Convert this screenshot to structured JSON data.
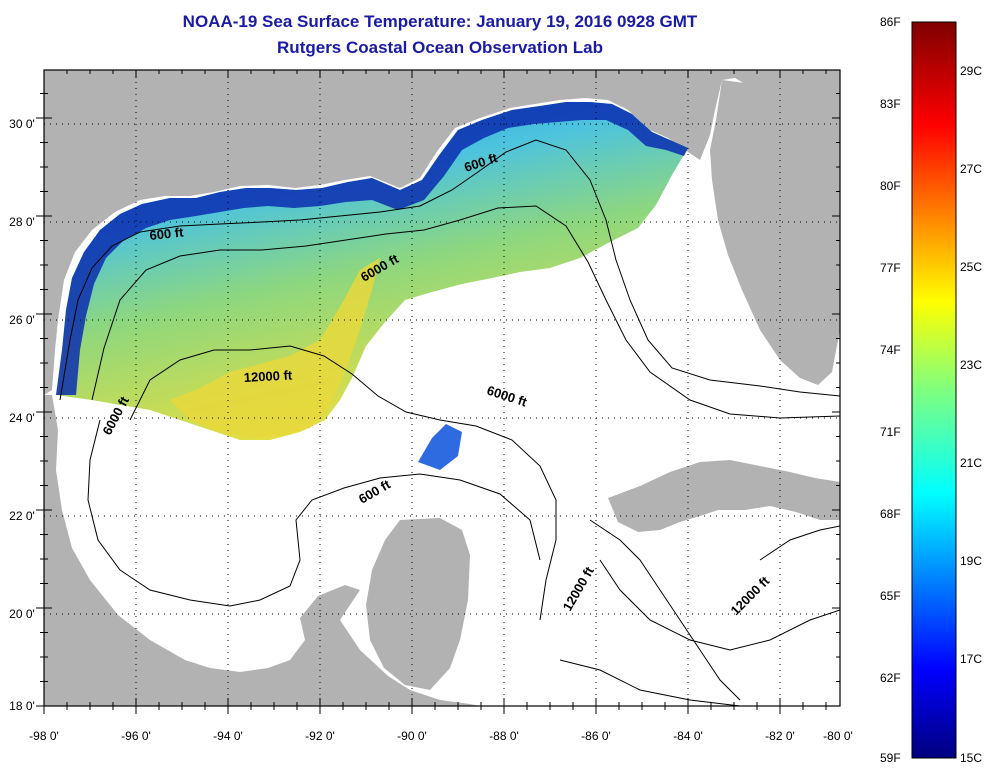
{
  "title": {
    "line1": "NOAA-19 Sea Surface Temperature:  January 19, 2016 0928 GMT",
    "line2": "Rutgers Coastal Ocean Observation Lab"
  },
  "axes": {
    "lon_labels": [
      "-98 0'",
      "-96 0'",
      "-94 0'",
      "-92 0'",
      "-90 0'",
      "-88 0'",
      "-86 0'",
      "-84 0'",
      "-82 0'",
      "-80 0'"
    ],
    "lat_labels": [
      "30 0'",
      "28 0'",
      "26 0'",
      "24 0'",
      "22 0'",
      "20 0'",
      "18 0'"
    ],
    "lon_range": [
      -98,
      -80
    ],
    "lat_range": [
      18,
      31
    ]
  },
  "colorbar": {
    "f_labels": [
      "86F",
      "83F",
      "80F",
      "77F",
      "74F",
      "71F",
      "68F",
      "65F",
      "62F",
      "59F"
    ],
    "c_labels": [
      "29C",
      "27C",
      "25C",
      "23C",
      "21C",
      "19C",
      "17C",
      "15C"
    ]
  },
  "contour_labels": [
    "600 ft",
    "600 ft",
    "6000 ft",
    "12000 ft",
    "6000 ft",
    "6000 ft",
    "600 ft",
    "12000 ft",
    "12000 ft"
  ],
  "colors": {
    "land": "#b2b2b2",
    "title": "#1a1aa6",
    "coast_dark": "#00138f",
    "cold": "#1f5ee8",
    "cyan": "#3ac8e8",
    "mid": "#86d48a",
    "warm": "#e6e23a"
  }
}
